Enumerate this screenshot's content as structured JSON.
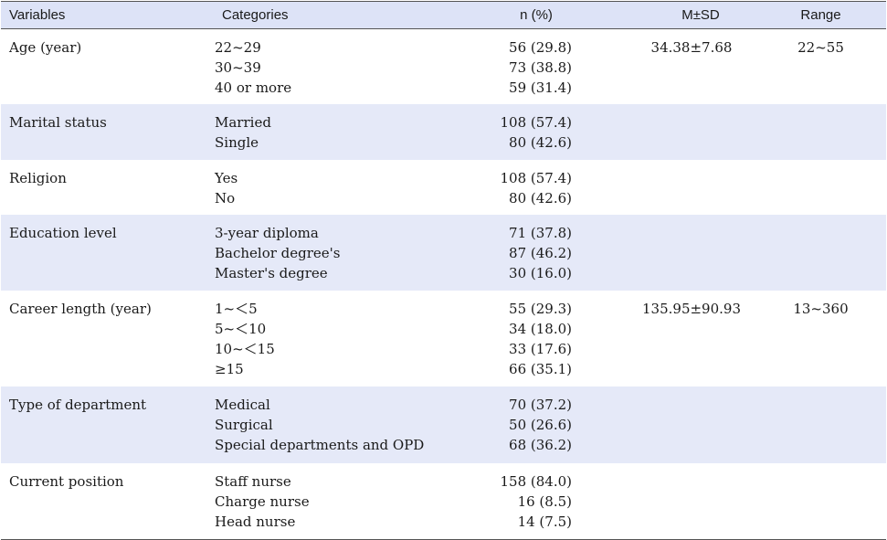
{
  "headers": {
    "variables": "Variables",
    "categories": "Categories",
    "n_pct": "n (%)",
    "msd": "M±SD",
    "range": "Range"
  },
  "rows": [
    {
      "variable": "Age (year)",
      "categories": [
        "22~29",
        "30~39",
        "40 or more"
      ],
      "n": [
        "56 (29.8)",
        "73 (38.8)",
        "59 (31.4)"
      ],
      "msd": "34.38±7.68",
      "range": "22~55",
      "shaded": false
    },
    {
      "variable": "Marital status",
      "categories": [
        "Married",
        "Single"
      ],
      "n": [
        "108 (57.4)",
        "80 (42.6)"
      ],
      "msd": "",
      "range": "",
      "shaded": true
    },
    {
      "variable": "Religion",
      "categories": [
        "Yes",
        "No"
      ],
      "n": [
        "108 (57.4)",
        "80 (42.6)"
      ],
      "msd": "",
      "range": "",
      "shaded": false
    },
    {
      "variable": "Education level",
      "categories": [
        "3-year diploma",
        "Bachelor degree's",
        "Master's degree"
      ],
      "n": [
        "71 (37.8)",
        "87 (46.2)",
        "30 (16.0)"
      ],
      "msd": "",
      "range": "",
      "shaded": true
    },
    {
      "variable": "Career length (year)",
      "categories": [
        "1~＜5",
        "5~＜10",
        "10~＜15",
        "≥15"
      ],
      "n": [
        "55 (29.3)",
        "34 (18.0)",
        "33 (17.6)",
        "66 (35.1)"
      ],
      "msd": "135.95±90.93",
      "range": "13~360",
      "shaded": false
    },
    {
      "variable": "Type of department",
      "categories": [
        "Medical",
        "Surgical",
        "Special departments and OPD"
      ],
      "n": [
        "70 (37.2)",
        "50 (26.6)",
        "68 (36.2)"
      ],
      "msd": "",
      "range": "",
      "shaded": true
    },
    {
      "variable": "Current position",
      "categories": [
        "Staff nurse",
        "Charge nurse",
        "Head nurse"
      ],
      "n": [
        "158 (84.0)",
        "16 (8.5)",
        "14 (7.5)"
      ],
      "msd": "",
      "range": "",
      "shaded": false
    }
  ]
}
